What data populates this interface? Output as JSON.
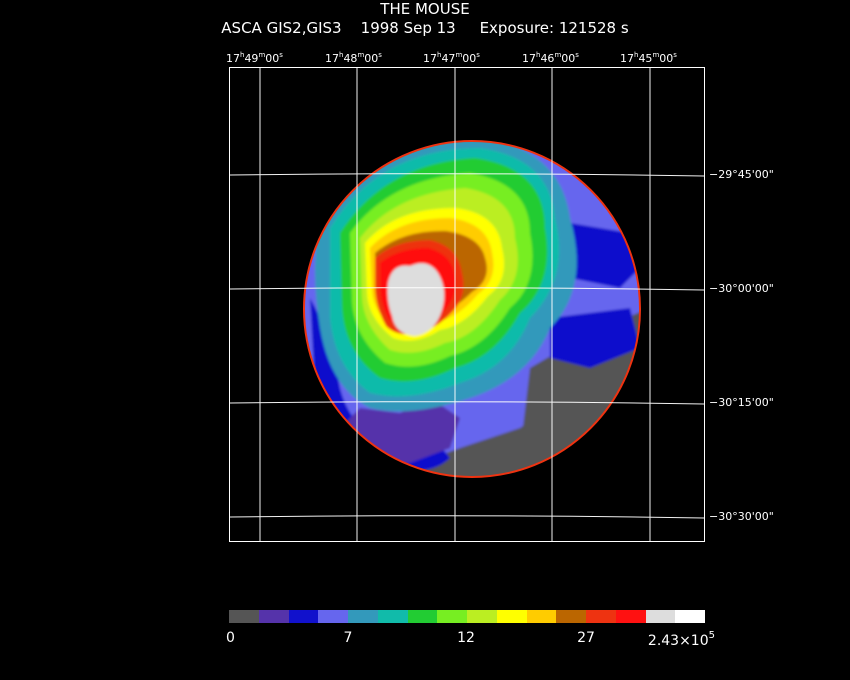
{
  "title": "THE MOUSE",
  "subtitle": {
    "instrument": "ASCA GIS2,GIS3",
    "date": "1998 Sep 13",
    "exposure": "Exposure: 121528 s"
  },
  "ra_ticks": [
    {
      "h": "17",
      "m": "49",
      "s": "00"
    },
    {
      "h": "17",
      "m": "48",
      "s": "00"
    },
    {
      "h": "17",
      "m": "47",
      "s": "00"
    },
    {
      "h": "17",
      "m": "46",
      "s": "00"
    },
    {
      "h": "17",
      "m": "45",
      "s": "00"
    }
  ],
  "dec_ticks": [
    "−29°45'00\"",
    "−30°00'00\"",
    "−30°15'00\"",
    "−30°30'00\""
  ],
  "colorbar": {
    "colors": [
      "#555555",
      "#5533aa",
      "#1111cc",
      "#6666ee",
      "#3399bb",
      "#11bbaa",
      "#22cc33",
      "#77ee22",
      "#bbee22",
      "#ffff00",
      "#ffcc00",
      "#bb6600",
      "#ee3311",
      "#ff1111",
      "#dddddd",
      "#ffffff"
    ],
    "labels": [
      "0",
      "7",
      "12",
      "27",
      "2.43×10"
    ],
    "label_exp": "5"
  },
  "image": {
    "colors": {
      "background": "#000000",
      "level_0": "#555555",
      "level_1": "#5533aa",
      "level_2": "#1111cc",
      "level_3": "#6666ee",
      "level_4": "#3399bb",
      "level_5": "#11bbaa",
      "level_6": "#22cc33",
      "level_7": "#77ee22",
      "level_8": "#bbee22",
      "level_9": "#ffff00",
      "level_10": "#ffcc00",
      "level_11": "#bb6600",
      "level_12": "#ee3311",
      "level_13": "#ff1111",
      "level_14": "#dddddd"
    }
  }
}
